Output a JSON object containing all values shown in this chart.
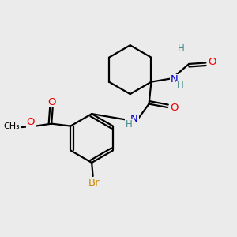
{
  "background_color": "#ebebeb",
  "fig_size": [
    3.0,
    3.0
  ],
  "dpi": 100,
  "atom_colors": {
    "C": "#000000",
    "O": "#ee0000",
    "N": "#0000cc",
    "H": "#448888",
    "Br": "#cc8800"
  },
  "bond_color": "#000000",
  "bond_width": 1.6
}
